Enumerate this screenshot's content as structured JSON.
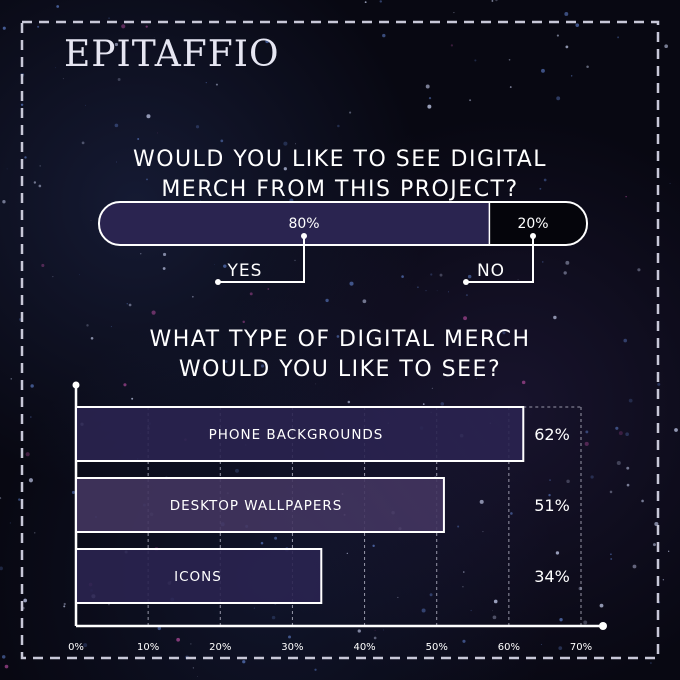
{
  "logo": "EPITAFFIO",
  "colors": {
    "bar_fill": "#2a2450",
    "bar_fill_alt": "#43355f",
    "no_fill": "#05050b",
    "stroke": "#ffffff"
  },
  "chart_data": [
    {
      "type": "bar",
      "orientation": "horizontal-stacked",
      "title_lines": [
        "WOULD YOU LIKE TO SEE DIGITAL",
        "MERCH FROM THIS PROJECT?"
      ],
      "categories": [
        "YES",
        "NO"
      ],
      "values": [
        80,
        20
      ],
      "value_labels": [
        "80%",
        "20%"
      ]
    },
    {
      "type": "bar",
      "orientation": "horizontal",
      "title_lines": [
        "WHAT TYPE OF DIGITAL MERCH",
        "WOULD YOU LIKE TO SEE?"
      ],
      "categories": [
        "PHONE BACKGROUNDS",
        "DESKTOP WALLPAPERS",
        "ICONS"
      ],
      "values": [
        62,
        51,
        34
      ],
      "value_labels": [
        "62%",
        "51%",
        "34%"
      ],
      "xlim": [
        0,
        70
      ],
      "x_ticks": [
        "0%",
        "10%",
        "20%",
        "30%",
        "40%",
        "50%",
        "60%",
        "70%"
      ],
      "grid": "vertical dashed"
    }
  ]
}
